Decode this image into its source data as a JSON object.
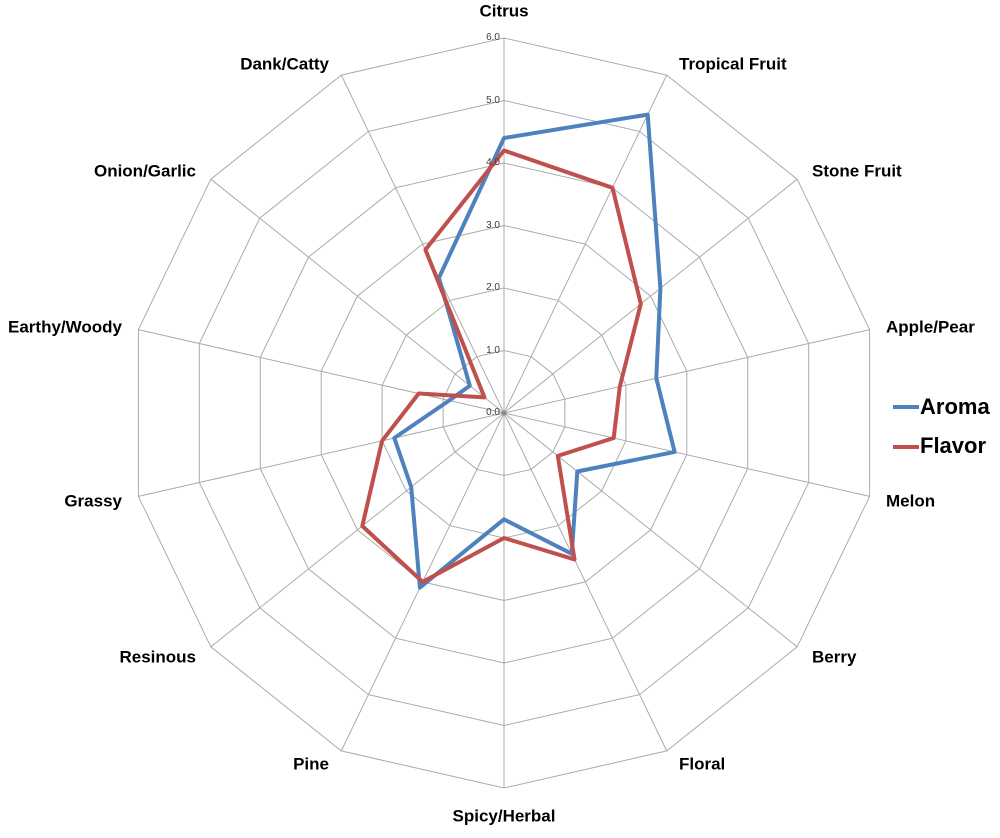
{
  "chart_data": {
    "type": "radar",
    "title": "",
    "categories": [
      "Citrus",
      "Tropical Fruit",
      "Stone Fruit",
      "Apple/Pear",
      "Melon",
      "Berry",
      "Floral",
      "Spicy/Herbal",
      "Pine",
      "Resinous",
      "Grassy",
      "Earthy/Woody",
      "Onion/Garlic",
      "Dank/Catty"
    ],
    "series": [
      {
        "name": "Aroma",
        "color": "#4F81BD",
        "values": [
          4.4,
          5.3,
          3.2,
          2.5,
          2.8,
          1.5,
          2.5,
          1.7,
          3.1,
          1.9,
          1.8,
          0.9,
          0.7,
          2.4
        ]
      },
      {
        "name": "Flavor",
        "color": "#C0504D",
        "values": [
          4.2,
          4.0,
          2.8,
          1.9,
          1.8,
          1.1,
          2.6,
          2.0,
          3.0,
          2.9,
          2.0,
          1.4,
          0.4,
          2.9
        ]
      }
    ],
    "radial_axis": {
      "min": 0,
      "max": 6,
      "step": 1,
      "tick_labels": [
        "0.0",
        "1.0",
        "2.0",
        "3.0",
        "4.0",
        "5.0",
        "6.0"
      ]
    },
    "grid": true,
    "grid_color": "#ABABAB",
    "tick_color": "#3f3f3f",
    "label_color": "#000000",
    "legend_position": "right"
  },
  "legend": {
    "aroma_label": "Aroma",
    "flavor_label": "Flavor"
  }
}
